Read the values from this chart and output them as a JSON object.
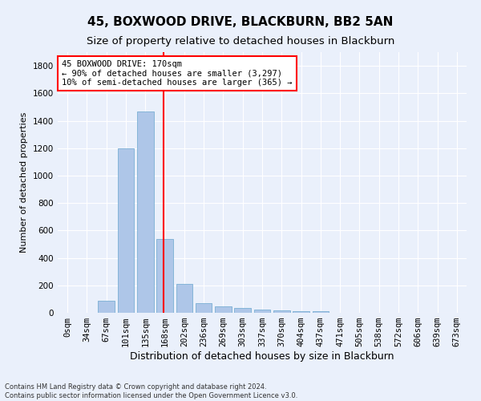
{
  "title": "45, BOXWOOD DRIVE, BLACKBURN, BB2 5AN",
  "subtitle": "Size of property relative to detached houses in Blackburn",
  "xlabel": "Distribution of detached houses by size in Blackburn",
  "ylabel": "Number of detached properties",
  "bar_color": "#aec6e8",
  "bar_edge_color": "#7aafd4",
  "categories": [
    "0sqm",
    "34sqm",
    "67sqm",
    "101sqm",
    "135sqm",
    "168sqm",
    "202sqm",
    "236sqm",
    "269sqm",
    "303sqm",
    "337sqm",
    "370sqm",
    "404sqm",
    "437sqm",
    "471sqm",
    "505sqm",
    "538sqm",
    "572sqm",
    "606sqm",
    "639sqm",
    "673sqm"
  ],
  "values": [
    0,
    0,
    90,
    1200,
    1470,
    535,
    210,
    70,
    45,
    35,
    25,
    20,
    10,
    10,
    0,
    0,
    0,
    0,
    0,
    0,
    0
  ],
  "ylim": [
    0,
    1900
  ],
  "yticks": [
    0,
    200,
    400,
    600,
    800,
    1000,
    1200,
    1400,
    1600,
    1800
  ],
  "red_line_bin": 5,
  "annotation_title": "45 BOXWOOD DRIVE: 170sqm",
  "annotation_line1": "← 90% of detached houses are smaller (3,297)",
  "annotation_line2": "10% of semi-detached houses are larger (365) →",
  "footer_line1": "Contains HM Land Registry data © Crown copyright and database right 2024.",
  "footer_line2": "Contains public sector information licensed under the Open Government Licence v3.0.",
  "background_color": "#eaf0fb",
  "grid_color": "#ffffff",
  "title_fontsize": 11,
  "subtitle_fontsize": 9.5,
  "xlabel_fontsize": 9,
  "ylabel_fontsize": 8,
  "tick_fontsize": 7.5,
  "annotation_fontsize": 7.5,
  "footer_fontsize": 6
}
